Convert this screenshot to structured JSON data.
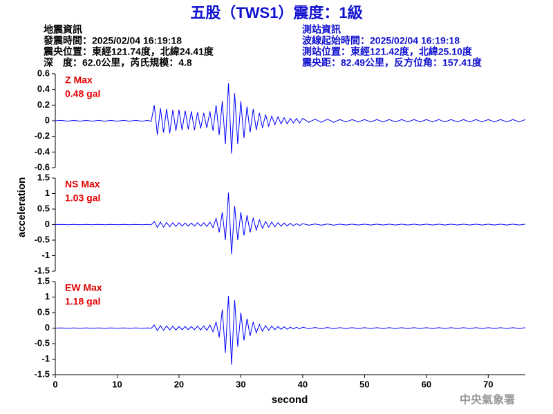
{
  "header": {
    "title": "五股（TWS1）震度：1級",
    "left": [
      "地震資訊",
      "發震時間：2025/02/04 16:19:18",
      "震央位置：東經121.74度，北緯24.41度",
      "深　度：62.0公里，芮氏規模：4.8"
    ],
    "right": [
      "測站資訊",
      "波線起始時間：2025/02/04 16:19:18",
      "測站位置：東經121.42度，北緯25.10度",
      "震央距：82.49公里，反方位角：157.41度"
    ]
  },
  "footer": "中央氣象署",
  "chart_data": [
    {
      "type": "line",
      "color": "#0000ff",
      "annotation_color": "#e00000",
      "annotations": [
        "Z Max",
        "0.48 gal"
      ],
      "xlim": [
        0,
        76
      ],
      "ylim": [
        -0.6,
        0.6
      ],
      "yticks": [
        0.6,
        0.4,
        0.2,
        0,
        -0.2,
        -0.4,
        -0.6
      ],
      "x": [
        0,
        1,
        2,
        3,
        4,
        5,
        6,
        7,
        8,
        9,
        10,
        11,
        12,
        13,
        14,
        15,
        15.5,
        16,
        16.5,
        17,
        17.5,
        18,
        18.5,
        19,
        19.5,
        20,
        20.5,
        21,
        21.5,
        22,
        22.5,
        23,
        23.5,
        24,
        24.5,
        25,
        25.5,
        26,
        26.5,
        27,
        27.5,
        28,
        28.5,
        29,
        29.5,
        30,
        30.5,
        31,
        31.5,
        32,
        32.5,
        33,
        33.5,
        34,
        34.5,
        35,
        35.5,
        36,
        36.5,
        37,
        37.5,
        38,
        38.5,
        39,
        39.5,
        40,
        41,
        42,
        43,
        44,
        45,
        46,
        47,
        48,
        49,
        50,
        51,
        52,
        53,
        54,
        55,
        56,
        57,
        58,
        59,
        60,
        61,
        62,
        63,
        64,
        65,
        66,
        67,
        68,
        69,
        70,
        71,
        72,
        73,
        74,
        75,
        76
      ],
      "values": [
        0,
        0.005,
        -0.005,
        0.005,
        -0.005,
        0.005,
        -0.005,
        0.005,
        -0.005,
        0.005,
        -0.005,
        0.005,
        -0.005,
        0.005,
        -0.005,
        0.005,
        -0.01,
        0.2,
        -0.18,
        0.16,
        -0.15,
        0.15,
        -0.16,
        0.14,
        -0.13,
        0.14,
        -0.12,
        0.13,
        -0.11,
        0.12,
        -0.12,
        0.11,
        -0.1,
        0.1,
        -0.09,
        0.12,
        -0.13,
        0.2,
        -0.18,
        0.25,
        -0.3,
        0.48,
        -0.42,
        0.35,
        -0.3,
        0.25,
        -0.22,
        0.18,
        -0.15,
        0.15,
        -0.12,
        0.1,
        -0.09,
        0.08,
        -0.07,
        0.06,
        -0.05,
        0.05,
        -0.04,
        0.04,
        -0.04,
        0.03,
        -0.03,
        0.03,
        -0.03,
        0.03,
        -0.02,
        0.02,
        -0.02,
        0.02,
        -0.02,
        0.015,
        -0.015,
        0.015,
        -0.015,
        0.015,
        -0.015,
        0.015,
        -0.015,
        0.015,
        -0.015,
        0.015,
        -0.015,
        0.015,
        -0.015,
        0.015,
        -0.015,
        0.015,
        -0.015,
        0.015,
        -0.015,
        0.015,
        -0.015,
        0.015,
        -0.015,
        0.015,
        -0.015,
        0.015,
        -0.015,
        0.015,
        -0.015,
        0.015
      ]
    },
    {
      "type": "line",
      "color": "#0000ff",
      "annotation_color": "#e00000",
      "annotations": [
        "NS Max",
        "1.03 gal"
      ],
      "ylabel": "acceleration",
      "xlim": [
        0,
        76
      ],
      "ylim": [
        -1.5,
        1.5
      ],
      "yticks": [
        1.5,
        1,
        0.5,
        0,
        -0.5,
        -1,
        -1.5
      ],
      "x": [
        0,
        1,
        2,
        3,
        4,
        5,
        6,
        7,
        8,
        9,
        10,
        11,
        12,
        13,
        14,
        15,
        15.5,
        16,
        16.5,
        17,
        17.5,
        18,
        18.5,
        19,
        19.5,
        20,
        20.5,
        21,
        21.5,
        22,
        22.5,
        23,
        23.5,
        24,
        24.5,
        25,
        25.5,
        26,
        26.5,
        27,
        27.5,
        28,
        28.5,
        29,
        29.5,
        30,
        30.5,
        31,
        31.5,
        32,
        32.5,
        33,
        33.5,
        34,
        34.5,
        35,
        35.5,
        36,
        36.5,
        37,
        37.5,
        38,
        38.5,
        39,
        39.5,
        40,
        41,
        42,
        43,
        44,
        45,
        46,
        47,
        48,
        49,
        50,
        51,
        52,
        53,
        54,
        55,
        56,
        57,
        58,
        59,
        60,
        61,
        62,
        63,
        64,
        65,
        66,
        67,
        68,
        69,
        70,
        71,
        72,
        73,
        74,
        75,
        76
      ],
      "values": [
        0,
        0.005,
        -0.005,
        0.005,
        -0.005,
        0.005,
        -0.005,
        0.005,
        -0.005,
        0.005,
        -0.005,
        0.005,
        -0.005,
        0.005,
        -0.005,
        0.005,
        -0.01,
        0.1,
        -0.09,
        0.08,
        -0.08,
        0.07,
        -0.07,
        0.06,
        -0.06,
        0.06,
        -0.05,
        0.05,
        -0.05,
        0.05,
        -0.05,
        0.06,
        -0.05,
        0.06,
        -0.06,
        0.08,
        -0.1,
        0.2,
        -0.25,
        0.4,
        -0.5,
        1.03,
        -0.95,
        0.6,
        -0.5,
        0.4,
        -0.35,
        0.3,
        -0.25,
        0.22,
        -0.18,
        0.15,
        -0.12,
        0.1,
        -0.08,
        0.08,
        -0.07,
        0.06,
        -0.05,
        0.05,
        -0.04,
        0.04,
        -0.04,
        0.03,
        -0.03,
        0.03,
        -0.02,
        0.02,
        -0.02,
        0.02,
        -0.02,
        0.015,
        -0.015,
        0.015,
        -0.015,
        0.015,
        -0.015,
        0.015,
        -0.015,
        0.015,
        -0.015,
        0.015,
        -0.015,
        0.015,
        -0.015,
        0.015,
        -0.015,
        0.015,
        -0.015,
        0.015,
        -0.015,
        0.015,
        -0.015,
        0.015,
        -0.015,
        0.015,
        -0.015,
        0.015,
        -0.015,
        0.015,
        -0.015,
        0.015
      ]
    },
    {
      "type": "line",
      "color": "#0000ff",
      "annotation_color": "#e00000",
      "annotations": [
        "EW Max",
        "1.18 gal"
      ],
      "xlabel": "second",
      "xlim": [
        0,
        76
      ],
      "xticks": [
        0,
        10,
        20,
        30,
        40,
        50,
        60,
        70
      ],
      "ylim": [
        -1.5,
        1.5
      ],
      "yticks": [
        1.5,
        1,
        0.5,
        0,
        -0.5,
        -1,
        -1.5
      ],
      "x": [
        0,
        1,
        2,
        3,
        4,
        5,
        6,
        7,
        8,
        9,
        10,
        11,
        12,
        13,
        14,
        15,
        15.5,
        16,
        16.5,
        17,
        17.5,
        18,
        18.5,
        19,
        19.5,
        20,
        20.5,
        21,
        21.5,
        22,
        22.5,
        23,
        23.5,
        24,
        24.5,
        25,
        25.5,
        26,
        26.5,
        27,
        27.5,
        28,
        28.5,
        29,
        29.5,
        30,
        30.5,
        31,
        31.5,
        32,
        32.5,
        33,
        33.5,
        34,
        34.5,
        35,
        35.5,
        36,
        36.5,
        37,
        37.5,
        38,
        38.5,
        39,
        39.5,
        40,
        41,
        42,
        43,
        44,
        45,
        46,
        47,
        48,
        49,
        50,
        51,
        52,
        53,
        54,
        55,
        56,
        57,
        58,
        59,
        60,
        61,
        62,
        63,
        64,
        65,
        66,
        67,
        68,
        69,
        70,
        71,
        72,
        73,
        74,
        75,
        76
      ],
      "values": [
        0,
        0.005,
        -0.005,
        0.005,
        -0.005,
        0.005,
        -0.005,
        0.005,
        -0.005,
        0.005,
        -0.005,
        0.005,
        -0.005,
        0.005,
        -0.005,
        0.005,
        -0.01,
        0.1,
        -0.08,
        0.08,
        -0.07,
        0.07,
        -0.06,
        0.06,
        -0.06,
        0.05,
        -0.05,
        0.05,
        -0.05,
        0.05,
        -0.05,
        0.06,
        -0.06,
        0.07,
        -0.07,
        0.1,
        -0.12,
        0.2,
        -0.3,
        0.6,
        -0.8,
        1.03,
        -1.18,
        0.9,
        -0.6,
        0.5,
        -0.4,
        0.3,
        -0.25,
        0.2,
        -0.15,
        0.12,
        -0.1,
        0.08,
        -0.07,
        0.06,
        -0.05,
        0.05,
        -0.04,
        0.04,
        -0.04,
        0.03,
        -0.03,
        0.03,
        -0.03,
        0.03,
        -0.02,
        0.02,
        -0.02,
        0.02,
        -0.02,
        0.015,
        -0.015,
        0.015,
        -0.015,
        0.015,
        -0.015,
        0.015,
        -0.015,
        0.015,
        -0.015,
        0.015,
        -0.015,
        0.015,
        -0.015,
        0.015,
        -0.015,
        0.015,
        -0.015,
        0.015,
        -0.015,
        0.015,
        -0.015,
        0.015,
        -0.015,
        0.015,
        -0.015,
        0.015,
        -0.015,
        0.015,
        -0.015,
        0.015
      ]
    }
  ]
}
